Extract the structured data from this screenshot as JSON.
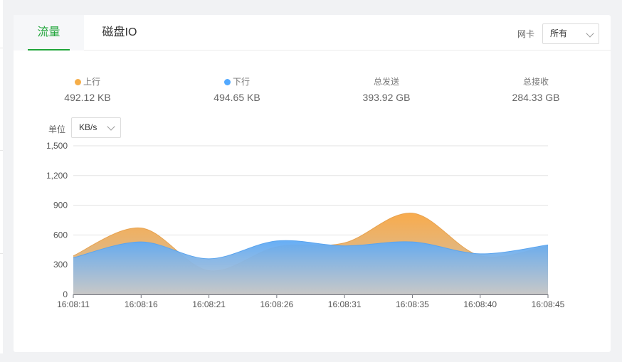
{
  "tabs": [
    {
      "label": "流量",
      "active": true
    },
    {
      "label": "磁盘IO",
      "active": false
    }
  ],
  "nic": {
    "label": "网卡",
    "selected": "所有"
  },
  "stats": [
    {
      "label": "上行",
      "value": "492.12 KB",
      "color": "#f6ae48"
    },
    {
      "label": "下行",
      "value": "494.65 KB",
      "color": "#52a9ff"
    },
    {
      "label": "总发送",
      "value": "393.92 GB"
    },
    {
      "label": "总接收",
      "value": "284.33 GB"
    }
  ],
  "unit": {
    "label": "单位",
    "selected": "KB/s"
  },
  "colors": {
    "accent": "#20a53a",
    "up": "#f6ae48",
    "down": "#52a9ff"
  },
  "chart_data": {
    "type": "area",
    "categories": [
      "16:08:11",
      "16:08:16",
      "16:08:21",
      "16:08:26",
      "16:08:31",
      "16:08:35",
      "16:08:40",
      "16:08:45"
    ],
    "yticks": [
      "0",
      "300",
      "600",
      "900",
      "1,200",
      "1,500"
    ],
    "ylim": [
      0,
      1500
    ],
    "grid": true,
    "series": [
      {
        "name": "上行",
        "values": [
          390,
          670,
          240,
          480,
          520,
          820,
          390,
          490
        ]
      },
      {
        "name": "下行",
        "values": [
          370,
          530,
          360,
          540,
          490,
          530,
          410,
          500
        ]
      }
    ]
  }
}
